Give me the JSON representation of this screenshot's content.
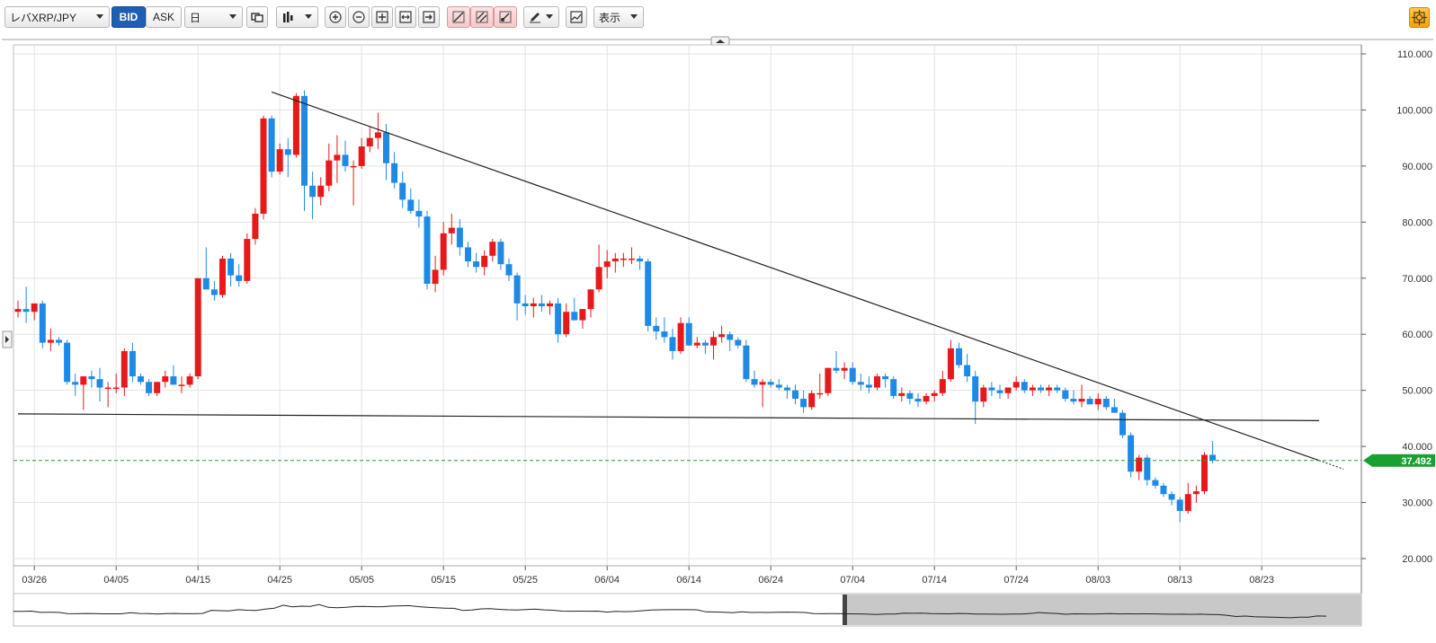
{
  "toolbar": {
    "symbol": "レバXRP/JPY",
    "bid_label": "BID",
    "ask_label": "ASK",
    "period": "日",
    "display_label": "表示"
  },
  "chart_data": {
    "type": "candlestick",
    "y_ticks": [
      "110.000",
      "100.000",
      "90.000",
      "80.000",
      "70.000",
      "60.000",
      "50.000",
      "40.000",
      "30.000",
      "20.000"
    ],
    "ylim": [
      20,
      110
    ],
    "x_tick_labels": [
      "03/26",
      "04/05",
      "04/15",
      "04/25",
      "05/05",
      "05/15",
      "05/25",
      "06/04",
      "06/14",
      "06/24",
      "07/04",
      "07/14",
      "07/24",
      "08/03",
      "08/13",
      "08/23"
    ],
    "current_price_label": "37.492",
    "current_price": 37.492,
    "colors": {
      "up": "#e8191b",
      "down": "#1e8ae6",
      "price_line": "#1aa031",
      "grid": "#e3e3e3"
    },
    "trendlines": [
      {
        "from": {
          "date_index": 31,
          "value": 103.2
        },
        "to": {
          "date_index": 159,
          "value": 37.5
        }
      },
      {
        "from": {
          "date_index": 0,
          "value": 45.8
        },
        "to": {
          "date_index": 159,
          "value": 44.6
        }
      }
    ],
    "candles": [
      [
        64.0,
        66.0,
        63.0,
        64.5
      ],
      [
        64.5,
        68.5,
        62.0,
        64.0
      ],
      [
        64.0,
        65.0,
        62.5,
        65.5
      ],
      [
        65.5,
        66.0,
        57.5,
        58.5
      ],
      [
        58.5,
        61.0,
        57.0,
        59.0
      ],
      [
        59.0,
        59.5,
        58.0,
        58.5
      ],
      [
        58.5,
        59.0,
        51.0,
        51.5
      ],
      [
        51.5,
        53.0,
        49.0,
        51.0
      ],
      [
        51.0,
        52.5,
        46.5,
        52.5
      ],
      [
        52.5,
        53.5,
        50.5,
        52.0
      ],
      [
        52.0,
        54.0,
        48.0,
        50.5
      ],
      [
        50.5,
        51.5,
        47.0,
        50.5
      ],
      [
        50.5,
        53.0,
        49.5,
        50.5
      ],
      [
        50.5,
        57.5,
        49.0,
        57.0
      ],
      [
        57.0,
        58.5,
        51.5,
        52.5
      ],
      [
        52.5,
        53.0,
        51.0,
        51.5
      ],
      [
        51.5,
        52.0,
        49.0,
        49.5
      ],
      [
        49.5,
        51.5,
        49.0,
        51.5
      ],
      [
        51.5,
        53.5,
        50.5,
        52.5
      ],
      [
        52.5,
        54.5,
        51.0,
        51.0
      ],
      [
        51.0,
        52.5,
        49.5,
        51.0
      ],
      [
        51.0,
        53.0,
        50.5,
        52.5
      ],
      [
        52.5,
        70.0,
        52.0,
        70.0
      ],
      [
        70.0,
        75.5,
        68.0,
        68.0
      ],
      [
        68.0,
        69.5,
        66.0,
        67.0
      ],
      [
        67.0,
        74.0,
        66.5,
        73.5
      ],
      [
        73.5,
        74.5,
        68.5,
        70.5
      ],
      [
        70.5,
        72.5,
        68.5,
        69.5
      ],
      [
        69.5,
        78.0,
        69.0,
        77.0
      ],
      [
        77.0,
        82.5,
        76.0,
        81.5
      ],
      [
        81.5,
        99.0,
        80.5,
        98.5
      ],
      [
        98.5,
        99.0,
        88.0,
        89.0
      ],
      [
        89.0,
        94.0,
        88.5,
        93.0
      ],
      [
        93.0,
        95.0,
        88.0,
        92.0
      ],
      [
        92.0,
        103.0,
        91.5,
        102.5
      ],
      [
        102.5,
        103.5,
        82.0,
        86.5
      ],
      [
        86.5,
        89.0,
        80.5,
        84.5
      ],
      [
        84.5,
        88.0,
        83.0,
        86.5
      ],
      [
        86.5,
        94.0,
        85.5,
        91.0
      ],
      [
        91.0,
        95.5,
        87.0,
        92.0
      ],
      [
        92.0,
        94.5,
        89.0,
        90.0
      ],
      [
        90.0,
        91.0,
        83.0,
        90.0
      ],
      [
        90.0,
        95.0,
        89.5,
        93.5
      ],
      [
        93.5,
        97.0,
        92.5,
        95.0
      ],
      [
        95.0,
        99.5,
        93.0,
        96.0
      ],
      [
        96.0,
        97.5,
        87.5,
        90.5
      ],
      [
        90.5,
        92.5,
        86.0,
        87.0
      ],
      [
        87.0,
        89.0,
        82.5,
        84.0
      ],
      [
        84.0,
        86.0,
        81.5,
        82.0
      ],
      [
        82.0,
        84.0,
        79.0,
        81.0
      ],
      [
        81.0,
        82.0,
        68.0,
        69.0
      ],
      [
        69.0,
        74.0,
        67.5,
        71.5
      ],
      [
        71.5,
        80.0,
        70.5,
        78.0
      ],
      [
        78.0,
        81.5,
        76.0,
        79.0
      ],
      [
        79.0,
        80.5,
        74.0,
        75.5
      ],
      [
        75.5,
        76.5,
        72.0,
        73.0
      ],
      [
        73.0,
        74.5,
        71.0,
        72.0
      ],
      [
        72.0,
        75.0,
        70.5,
        74.0
      ],
      [
        74.0,
        77.0,
        73.0,
        76.5
      ],
      [
        76.5,
        77.0,
        71.5,
        72.5
      ],
      [
        72.5,
        73.5,
        69.5,
        70.5
      ],
      [
        70.5,
        71.0,
        62.5,
        65.5
      ],
      [
        65.5,
        67.0,
        63.5,
        65.0
      ],
      [
        65.0,
        66.5,
        63.0,
        65.5
      ],
      [
        65.5,
        67.0,
        64.0,
        65.0
      ],
      [
        65.0,
        66.0,
        63.5,
        65.5
      ],
      [
        65.5,
        66.5,
        58.5,
        60.0
      ],
      [
        60.0,
        65.5,
        59.5,
        64.0
      ],
      [
        64.0,
        66.5,
        62.5,
        62.5
      ],
      [
        62.5,
        64.5,
        61.0,
        64.5
      ],
      [
        64.5,
        68.0,
        63.0,
        68.0
      ],
      [
        68.0,
        76.0,
        67.5,
        72.0
      ],
      [
        72.0,
        75.0,
        70.0,
        73.0
      ],
      [
        73.0,
        74.5,
        71.0,
        73.5
      ],
      [
        73.5,
        74.5,
        72.0,
        73.5
      ],
      [
        73.5,
        75.5,
        72.5,
        73.5
      ],
      [
        73.5,
        74.0,
        71.5,
        73.0
      ],
      [
        73.0,
        73.5,
        60.5,
        61.5
      ],
      [
        61.5,
        63.0,
        59.0,
        60.5
      ],
      [
        60.5,
        63.0,
        58.5,
        59.5
      ],
      [
        59.5,
        61.0,
        55.5,
        57.0
      ],
      [
        57.0,
        63.0,
        56.5,
        62.0
      ],
      [
        62.0,
        63.0,
        58.0,
        58.0
      ],
      [
        58.0,
        59.5,
        57.5,
        58.5
      ],
      [
        58.5,
        59.0,
        56.5,
        58.0
      ],
      [
        58.0,
        60.5,
        55.5,
        59.5
      ],
      [
        59.5,
        61.5,
        58.5,
        60.0
      ],
      [
        60.0,
        60.5,
        57.0,
        59.0
      ],
      [
        59.0,
        59.5,
        57.5,
        58.0
      ],
      [
        58.0,
        59.0,
        51.5,
        52.0
      ],
      [
        52.0,
        53.5,
        50.5,
        51.0
      ],
      [
        51.0,
        52.0,
        47.0,
        51.5
      ],
      [
        51.5,
        52.0,
        50.5,
        51.0
      ],
      [
        51.0,
        52.0,
        50.0,
        50.5
      ],
      [
        50.5,
        51.0,
        48.5,
        50.0
      ],
      [
        50.0,
        51.0,
        47.5,
        48.5
      ],
      [
        48.5,
        50.0,
        46.0,
        47.0
      ],
      [
        47.0,
        50.0,
        46.5,
        49.5
      ],
      [
        49.5,
        53.0,
        48.5,
        49.5
      ],
      [
        49.5,
        54.0,
        49.0,
        54.0
      ],
      [
        54.0,
        57.0,
        53.0,
        53.5
      ],
      [
        53.5,
        55.0,
        52.0,
        54.0
      ],
      [
        54.0,
        55.0,
        51.0,
        51.5
      ],
      [
        51.5,
        53.0,
        50.0,
        51.0
      ],
      [
        51.0,
        52.5,
        49.5,
        50.5
      ],
      [
        50.5,
        53.0,
        50.0,
        52.5
      ],
      [
        52.5,
        53.0,
        50.5,
        52.0
      ],
      [
        52.0,
        52.5,
        48.5,
        49.0
      ],
      [
        49.0,
        50.5,
        48.0,
        49.5
      ],
      [
        49.5,
        50.0,
        47.5,
        48.5
      ],
      [
        48.5,
        49.5,
        47.0,
        48.0
      ],
      [
        48.0,
        49.5,
        47.5,
        49.0
      ],
      [
        49.0,
        50.0,
        48.0,
        49.5
      ],
      [
        49.5,
        53.5,
        49.0,
        52.0
      ],
      [
        52.0,
        59.0,
        51.5,
        57.5
      ],
      [
        57.5,
        58.5,
        54.0,
        54.5
      ],
      [
        54.5,
        56.5,
        51.5,
        52.5
      ],
      [
        52.5,
        53.5,
        44.0,
        48.0
      ],
      [
        48.0,
        51.0,
        47.0,
        50.5
      ],
      [
        50.5,
        51.5,
        49.0,
        50.0
      ],
      [
        50.0,
        51.0,
        48.5,
        49.5
      ],
      [
        49.5,
        50.5,
        48.5,
        50.5
      ],
      [
        50.5,
        52.5,
        50.0,
        51.5
      ],
      [
        51.5,
        52.0,
        49.5,
        50.0
      ],
      [
        50.0,
        51.0,
        49.0,
        50.5
      ],
      [
        50.5,
        51.0,
        49.5,
        50.0
      ],
      [
        50.0,
        51.0,
        49.0,
        50.5
      ],
      [
        50.5,
        51.0,
        49.5,
        50.0
      ],
      [
        50.0,
        50.5,
        48.0,
        48.5
      ],
      [
        48.5,
        50.0,
        47.5,
        48.0
      ],
      [
        48.0,
        51.0,
        47.0,
        48.5
      ],
      [
        48.5,
        49.0,
        47.5,
        47.5
      ],
      [
        47.5,
        49.5,
        46.5,
        48.5
      ],
      [
        48.5,
        49.0,
        46.5,
        47.0
      ],
      [
        47.0,
        48.5,
        46.0,
        46.0
      ],
      [
        46.0,
        46.5,
        41.5,
        42.0
      ],
      [
        42.0,
        42.5,
        34.5,
        35.5
      ],
      [
        35.5,
        38.5,
        34.0,
        38.0
      ],
      [
        38.0,
        38.5,
        33.0,
        34.0
      ],
      [
        34.0,
        34.5,
        32.5,
        33.0
      ],
      [
        33.0,
        33.5,
        31.0,
        31.5
      ],
      [
        31.5,
        32.0,
        29.5,
        30.5
      ],
      [
        30.5,
        31.0,
        26.5,
        28.5
      ],
      [
        28.5,
        33.5,
        28.0,
        31.5
      ],
      [
        31.5,
        33.0,
        30.0,
        32.0
      ],
      [
        32.0,
        39.0,
        31.5,
        38.5
      ],
      [
        38.5,
        41.0,
        37.0,
        37.5
      ]
    ]
  }
}
